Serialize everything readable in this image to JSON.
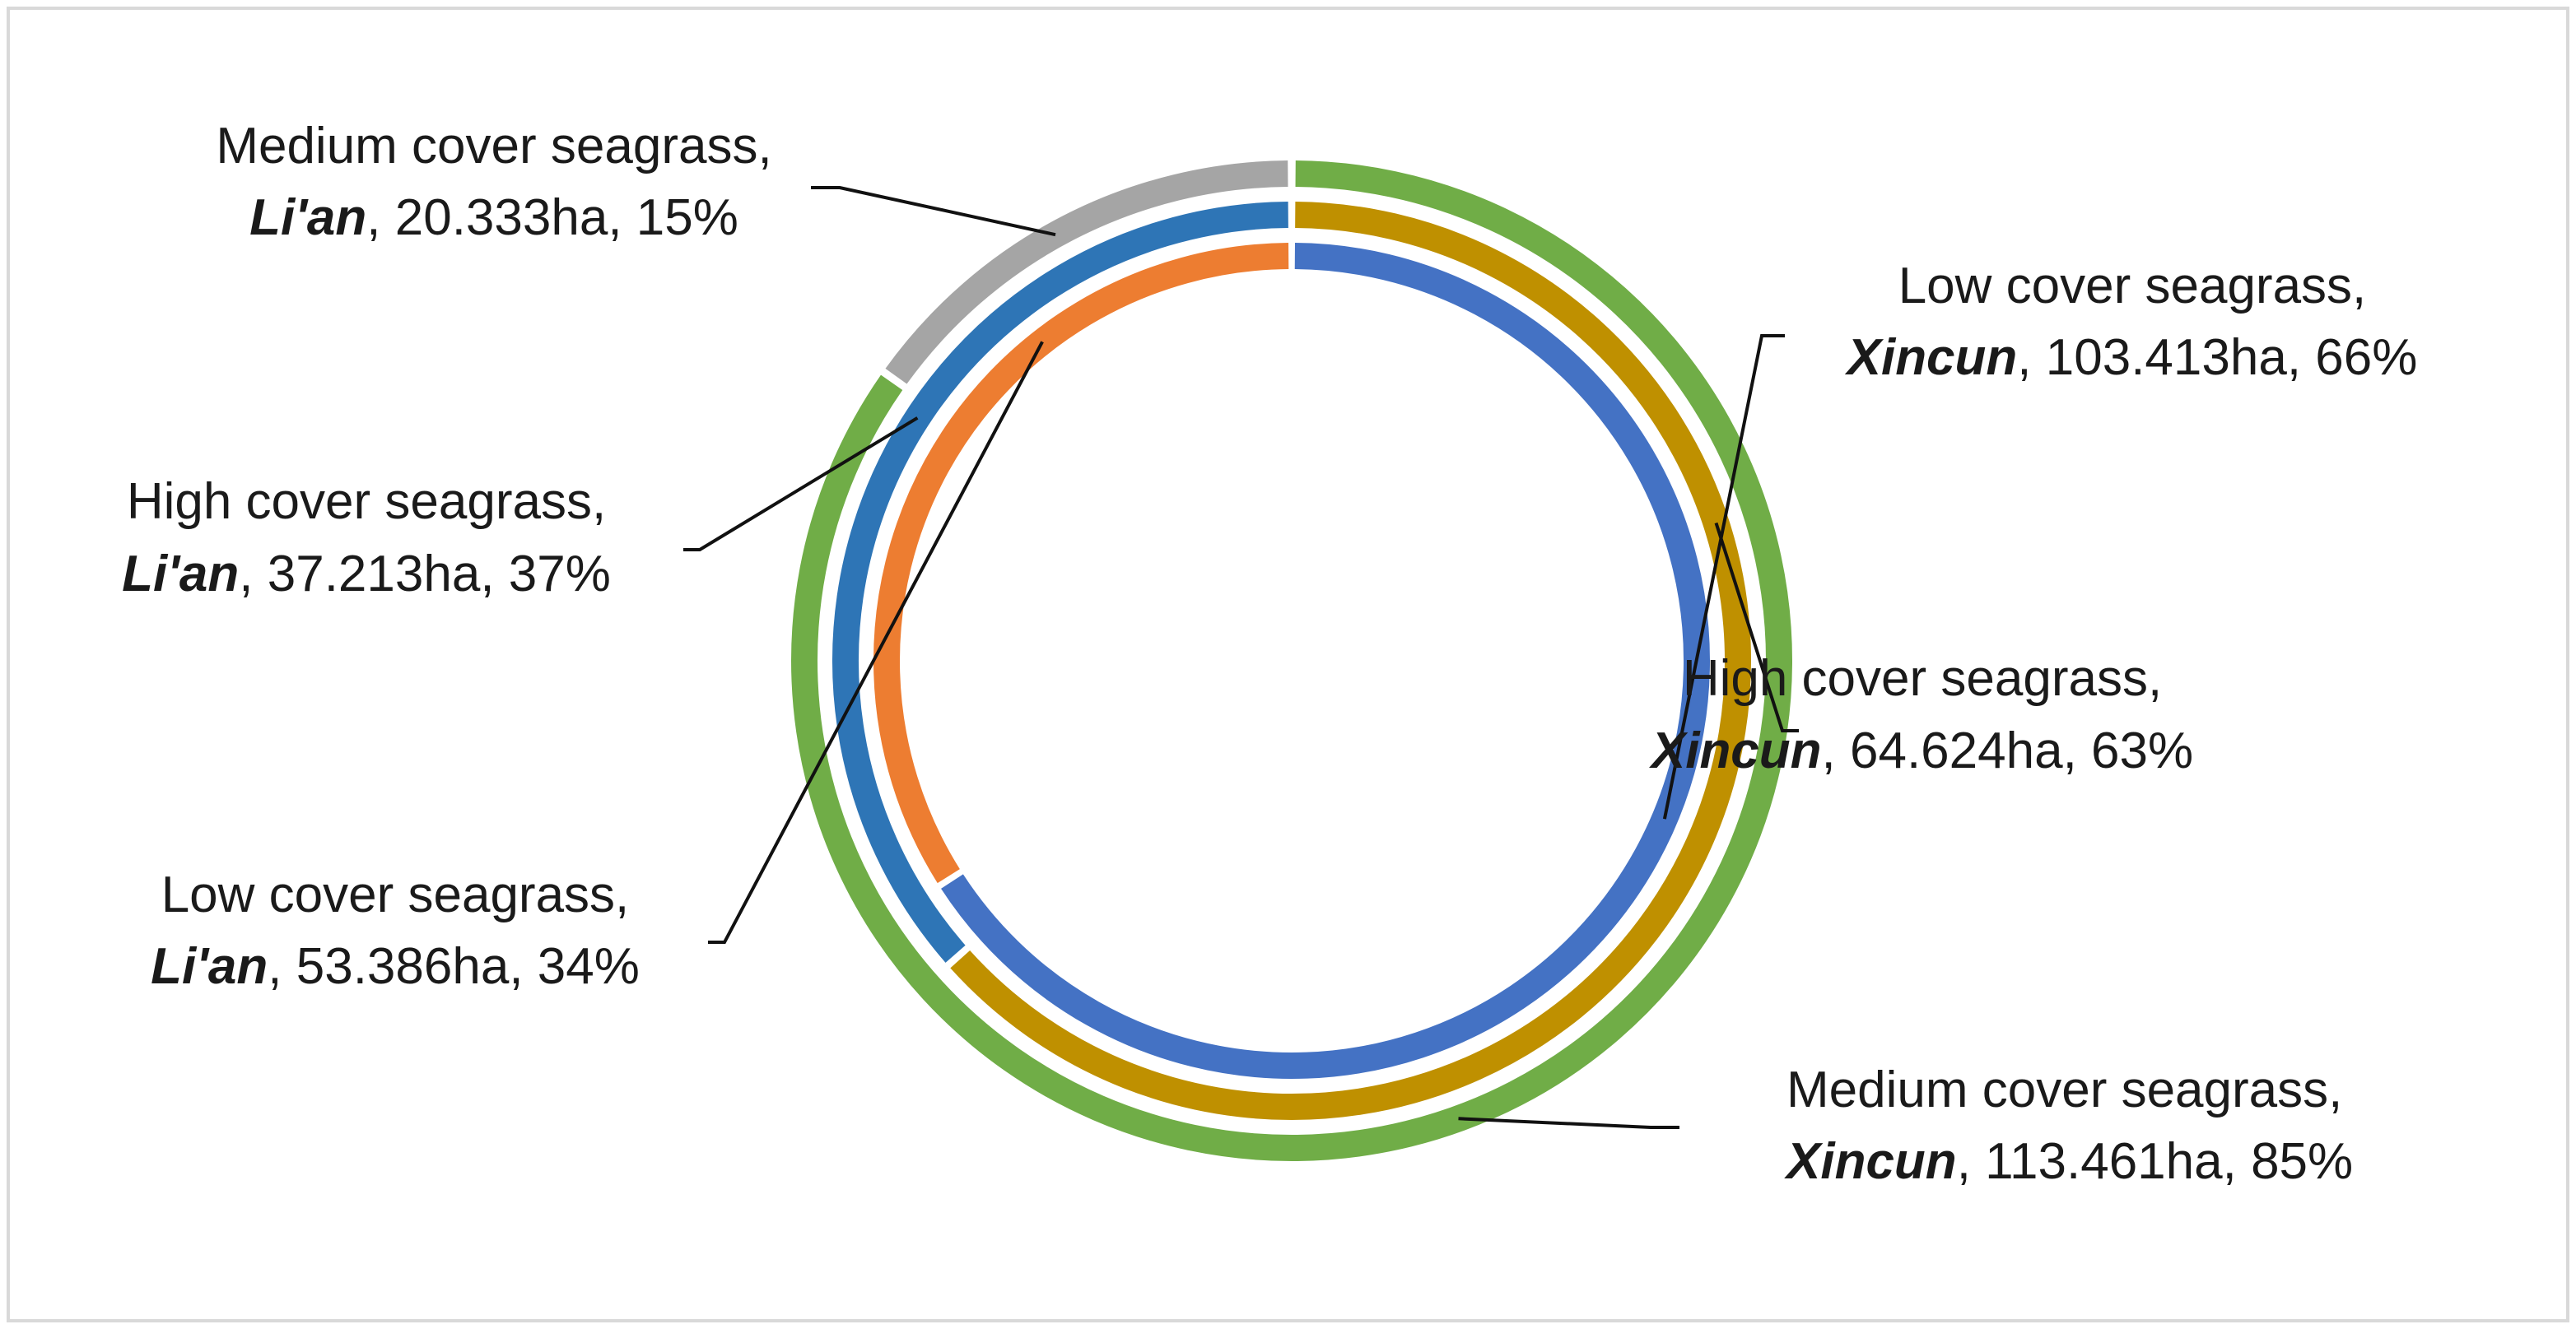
{
  "chart_data": {
    "type": "pie",
    "variant": "multi-level doughnut",
    "title": "",
    "rings": [
      {
        "name": "",
        "slices": [
          {
            "category": "Medium cover seagrass",
            "site": "Xincun",
            "area_ha": 113.461,
            "area_text": "113.461ha",
            "percent": 85,
            "percent_text": "85%",
            "color": "#70ad47"
          },
          {
            "category": "Medium cover seagrass",
            "site": "Li'an",
            "area_ha": 20.333,
            "area_text": "20.333ha",
            "percent": 15,
            "percent_text": "15%",
            "color": "#a5a5a5"
          }
        ]
      },
      {
        "name": "",
        "slices": [
          {
            "category": "High cover seagrass",
            "site": "Xincun",
            "area_ha": 64.624,
            "area_text": "64.624ha",
            "percent": 63,
            "percent_text": "63%",
            "color": "#bf9000"
          },
          {
            "category": "High cover seagrass",
            "site": "Li'an",
            "area_ha": 37.213,
            "area_text": "37.213ha",
            "percent": 37,
            "percent_text": "37%",
            "color": "#2e75b6"
          }
        ]
      },
      {
        "name": "",
        "slices": [
          {
            "category": "Low cover seagrass",
            "site": "Xincun",
            "area_ha": 103.413,
            "area_text": "103.413ha",
            "percent": 66,
            "percent_text": "66%",
            "color": "#4472c4"
          },
          {
            "category": "Low cover seagrass",
            "site": "Li'an",
            "area_ha": 53.386,
            "area_text": "53.386ha",
            "percent": 34,
            "percent_text": "34%",
            "color": "#ed7d31"
          }
        ]
      }
    ],
    "legend": "none"
  }
}
